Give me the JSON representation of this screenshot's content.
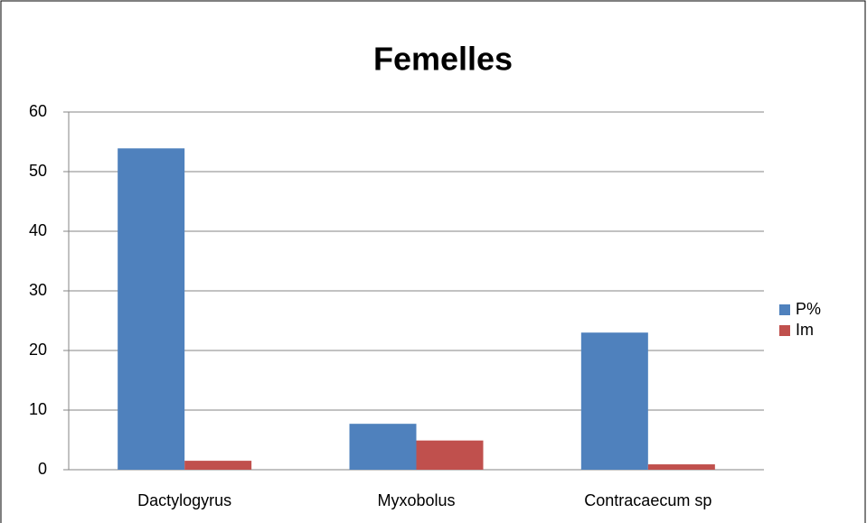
{
  "chart_data": {
    "type": "bar",
    "title": "Femelles",
    "categories": [
      "Dactylogyrus",
      "Myxobolus",
      "Contracaecum sp"
    ],
    "series": [
      {
        "name": "P%",
        "color": "#4f81bd",
        "values": [
          53.9,
          7.7,
          23.0
        ]
      },
      {
        "name": "Im",
        "color": "#c0504d",
        "values": [
          1.5,
          4.9,
          0.9
        ]
      }
    ],
    "ylim": [
      0,
      60
    ],
    "yticks": [
      0,
      10,
      20,
      30,
      40,
      50,
      60
    ],
    "grid": true,
    "legend": "right"
  }
}
